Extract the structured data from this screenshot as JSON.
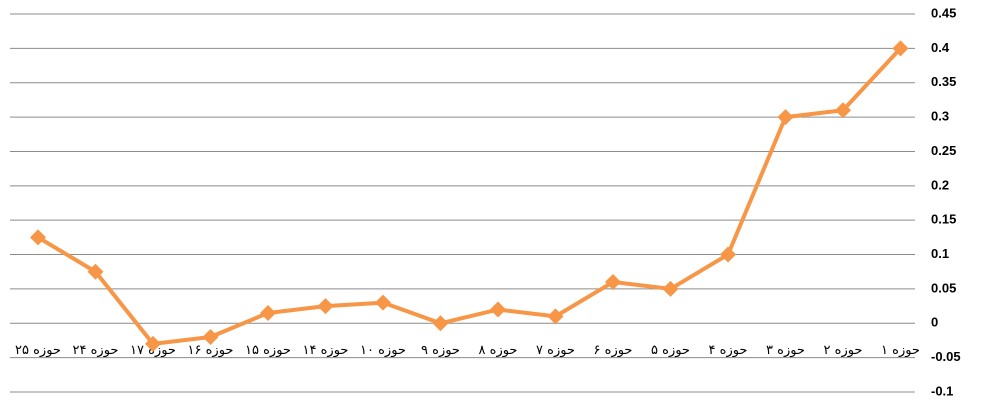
{
  "chart_data": {
    "type": "line",
    "categories": [
      "حوزه ۲۵",
      "حوزه ۲۴",
      "حوزه ۱۷",
      "حوزه ۱۶",
      "حوزه ۱۵",
      "حوزه ۱۴",
      "حوزه ۱۰",
      "حوزه ۹",
      "حوزه ۸",
      "حوزه ۷",
      "حوزه ۶",
      "حوزه ۵",
      "حوزه ۴",
      "حوزه ۳",
      "حوزه ۲",
      "حوزه ۱"
    ],
    "values": [
      0.125,
      0.075,
      -0.03,
      -0.02,
      0.015,
      0.025,
      0.03,
      0,
      0.02,
      0.01,
      0.06,
      0.05,
      0.1,
      0.3,
      0.31,
      0.4
    ],
    "color": "#f79646",
    "ylim": [
      -0.1,
      0.45
    ],
    "yticks": [
      -0.1,
      -0.05,
      0,
      0.05,
      0.1,
      0.15,
      0.2,
      0.25,
      0.3,
      0.35,
      0.4,
      0.45
    ],
    "grid": true
  }
}
